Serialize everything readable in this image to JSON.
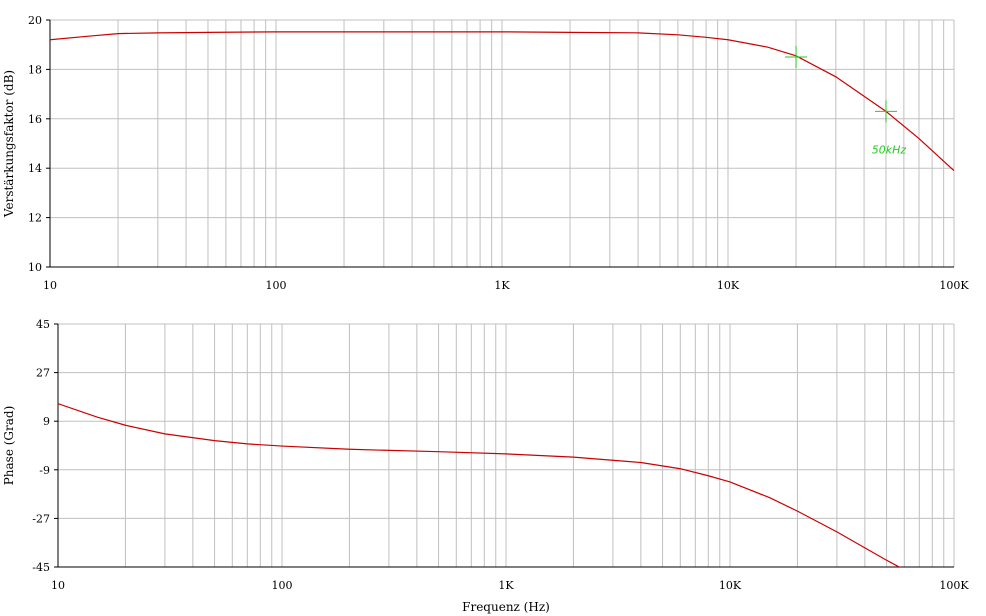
{
  "chart_data": [
    {
      "type": "line",
      "xscale": "log",
      "xlim": [
        10,
        100000
      ],
      "ylim": [
        10,
        20
      ],
      "grid": true,
      "xlabel": "",
      "ylabel": "Verstärkungsfaktor (dB)",
      "x_ticks": [
        {
          "value": 10,
          "label": "10"
        },
        {
          "value": 100,
          "label": "100"
        },
        {
          "value": 1000,
          "label": "1K"
        },
        {
          "value": 10000,
          "label": "10K"
        },
        {
          "value": 100000,
          "label": "100K"
        }
      ],
      "y_ticks": [
        {
          "value": 10,
          "label": "10"
        },
        {
          "value": 12,
          "label": "12"
        },
        {
          "value": 14,
          "label": "14"
        },
        {
          "value": 16,
          "label": "16"
        },
        {
          "value": 18,
          "label": "18"
        },
        {
          "value": 20,
          "label": "20"
        }
      ],
      "series": [
        {
          "color": "#cc0000",
          "points": [
            [
              10,
              19.2
            ],
            [
              15,
              19.35
            ],
            [
              20,
              19.45
            ],
            [
              30,
              19.48
            ],
            [
              50,
              19.5
            ],
            [
              100,
              19.52
            ],
            [
              300,
              19.52
            ],
            [
              1000,
              19.52
            ],
            [
              2000,
              19.5
            ],
            [
              4000,
              19.48
            ],
            [
              6000,
              19.4
            ],
            [
              8000,
              19.3
            ],
            [
              10000,
              19.2
            ],
            [
              15000,
              18.9
            ],
            [
              20000,
              18.55
            ],
            [
              30000,
              17.7
            ],
            [
              50000,
              16.3
            ],
            [
              70000,
              15.2
            ],
            [
              100000,
              13.9
            ]
          ]
        }
      ],
      "markers": [
        {
          "x": 20000,
          "y": 18.5,
          "color": "#22cc22",
          "label": ""
        },
        {
          "x": 50000,
          "y": 16.3,
          "color": "#22cc22",
          "label": "50kHz"
        }
      ]
    },
    {
      "type": "line",
      "xscale": "log",
      "xlim": [
        10,
        100000
      ],
      "ylim": [
        -45,
        45
      ],
      "grid": true,
      "xlabel": "Frequenz (Hz)",
      "ylabel": "Phase (Grad)",
      "x_ticks": [
        {
          "value": 10,
          "label": "10"
        },
        {
          "value": 100,
          "label": "100"
        },
        {
          "value": 1000,
          "label": "1K"
        },
        {
          "value": 10000,
          "label": "10K"
        },
        {
          "value": 100000,
          "label": "100K"
        }
      ],
      "y_ticks": [
        {
          "value": -45,
          "label": "-45"
        },
        {
          "value": -27,
          "label": "-27"
        },
        {
          "value": -9,
          "label": "-9"
        },
        {
          "value": 9,
          "label": "9"
        },
        {
          "value": 27,
          "label": "27"
        },
        {
          "value": 45,
          "label": "45"
        }
      ],
      "series": [
        {
          "color": "#cc0000",
          "points": [
            [
              10,
              15.5
            ],
            [
              15,
              10.5
            ],
            [
              20,
              7.5
            ],
            [
              30,
              4.3
            ],
            [
              50,
              1.8
            ],
            [
              70,
              0.6
            ],
            [
              100,
              -0.2
            ],
            [
              200,
              -1.4
            ],
            [
              500,
              -2.3
            ],
            [
              1000,
              -3.1
            ],
            [
              2000,
              -4.3
            ],
            [
              4000,
              -6.3
            ],
            [
              6000,
              -8.6
            ],
            [
              8000,
              -11.2
            ],
            [
              10000,
              -13.5
            ],
            [
              15000,
              -19.3
            ],
            [
              20000,
              -24.3
            ],
            [
              30000,
              -32
            ],
            [
              50000,
              -42.5
            ],
            [
              60000,
              -46
            ]
          ]
        }
      ]
    }
  ]
}
